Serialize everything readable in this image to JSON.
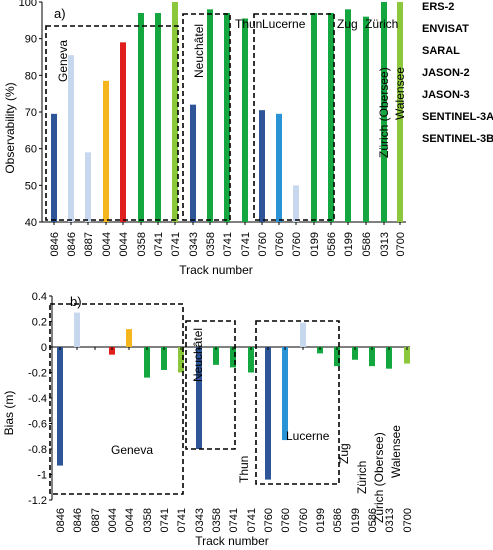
{
  "colors": {
    "ERS-2": "#2e5597",
    "ENVISAT": "#2a93d5",
    "SARAL": "#c7d7ee",
    "JASON-2": "#e01e1e",
    "JASON-3": "#f5b51d",
    "SENTINEL-3A": "#14a73f",
    "SENTINEL-3B": "#8cc83c"
  },
  "chart_data": [
    {
      "type": "bar",
      "panel_label": "a)",
      "xlabel": "Track number",
      "ylabel": "Observability (%)",
      "ylim": [
        40,
        100
      ],
      "yticks": [
        40,
        50,
        60,
        70,
        80,
        90,
        100
      ],
      "grid": false,
      "legend_position": "right",
      "categories": [
        "0846",
        "0846",
        "0887",
        "0044",
        "0044",
        "0358",
        "0741",
        "0741",
        "0343",
        "0358",
        "0741",
        "0741",
        "0760",
        "0760",
        "0760",
        "0199",
        "0586",
        "0199",
        "0586",
        "0313",
        "0700"
      ],
      "sensors": [
        "ERS-2",
        "SARAL",
        "SARAL",
        "JASON-3",
        "JASON-2",
        "SENTINEL-3A",
        "SENTINEL-3A",
        "SENTINEL-3B",
        "ERS-2",
        "SENTINEL-3A",
        "SENTINEL-3A",
        "SENTINEL-3A",
        "ERS-2",
        "ENVISAT",
        "SARAL",
        "SENTINEL-3A",
        "SENTINEL-3A",
        "SENTINEL-3A",
        "SENTINEL-3A",
        "SENTINEL-3A",
        "SENTINEL-3B"
      ],
      "values": [
        69.5,
        85.5,
        59,
        78.5,
        89,
        97,
        97,
        100,
        72,
        98,
        97,
        95.5,
        70.5,
        69.5,
        50,
        97,
        97,
        98,
        96,
        100,
        100
      ],
      "lakes": [
        {
          "name": "Geneva",
          "orientation": "vertical"
        },
        {
          "name": "Neuchâtel",
          "orientation": "vertical"
        },
        {
          "name": "Thun",
          "orientation": "horizontal"
        },
        {
          "name": "Lucerne",
          "orientation": "horizontal"
        },
        {
          "name": "Zug",
          "orientation": "horizontal"
        },
        {
          "name": "Zürich",
          "orientation": "horizontal"
        },
        {
          "name": "Zürich (Obersee)",
          "orientation": "vertical"
        },
        {
          "name": "Walensee",
          "orientation": "vertical"
        }
      ],
      "legend": [
        "ERS-2",
        "ENVISAT",
        "SARAL",
        "JASON-2",
        "JASON-3",
        "SENTINEL-3A",
        "SENTINEL-3B"
      ]
    },
    {
      "type": "bar",
      "panel_label": "b)",
      "xlabel": "Track number",
      "ylabel": "Bias (m)",
      "ylim": [
        -1.2,
        0.4
      ],
      "yticks": [
        -1.2,
        -1,
        -0.8,
        -0.6,
        -0.4,
        -0.2,
        0,
        0.2,
        0.4
      ],
      "grid": false,
      "categories": [
        "0846",
        "0846",
        "0887",
        "0044",
        "0044",
        "0358",
        "0741",
        "0741",
        "0343",
        "0358",
        "0741",
        "0741",
        "0760",
        "0760",
        "0760",
        "0199",
        "0586",
        "0199",
        "0586",
        "0313",
        "0700"
      ],
      "sensors": [
        "ERS-2",
        "SARAL",
        "SARAL",
        "JASON-2",
        "JASON-3",
        "SENTINEL-3A",
        "SENTINEL-3A",
        "SENTINEL-3B",
        "ERS-2",
        "SENTINEL-3A",
        "SENTINEL-3A",
        "SENTINEL-3A",
        "ERS-2",
        "ENVISAT",
        "SARAL",
        "SENTINEL-3A",
        "SENTINEL-3A",
        "SENTINEL-3A",
        "SENTINEL-3A",
        "SENTINEL-3A",
        "SENTINEL-3B"
      ],
      "values": [
        -0.93,
        0.27,
        0,
        -0.06,
        0.14,
        -0.24,
        -0.18,
        -0.2,
        -0.8,
        -0.14,
        -0.16,
        -0.2,
        -1.04,
        -0.73,
        0.19,
        -0.05,
        -0.15,
        -0.1,
        -0.15,
        -0.17,
        -0.13
      ],
      "lakes": [
        {
          "name": "Geneva",
          "orientation": "horizontal"
        },
        {
          "name": "Neuchâtel",
          "orientation": "vertical"
        },
        {
          "name": "Thun",
          "orientation": "vertical"
        },
        {
          "name": "Lucerne",
          "orientation": "horizontal"
        },
        {
          "name": "Zug",
          "orientation": "vertical"
        },
        {
          "name": "Zürich",
          "orientation": "vertical"
        },
        {
          "name": "Zürich (Obersee)",
          "orientation": "vertical"
        },
        {
          "name": "Walensee",
          "orientation": "vertical"
        }
      ]
    }
  ]
}
